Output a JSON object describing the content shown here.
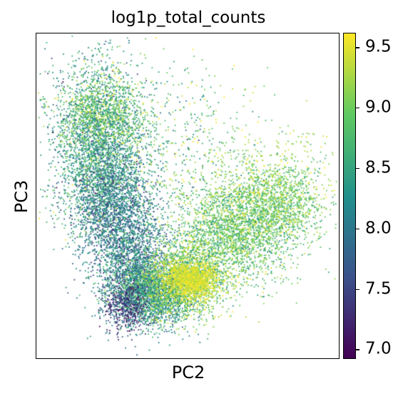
{
  "chart_data": {
    "type": "scatter",
    "title": "log1p_total_counts",
    "xlabel": "PC2",
    "ylabel": "PC3",
    "grid": false,
    "xticks": [],
    "yticks": [],
    "colorbar": {
      "label": "",
      "range": [
        6.92,
        9.62
      ],
      "ticks": [
        "7.0",
        "7.5",
        "8.0",
        "8.5",
        "9.0",
        "9.5"
      ],
      "colormap": "viridis"
    },
    "point_color_scale": [
      "#440154",
      "#3b528b",
      "#21918c",
      "#5ec962",
      "#fde725"
    ]
  }
}
